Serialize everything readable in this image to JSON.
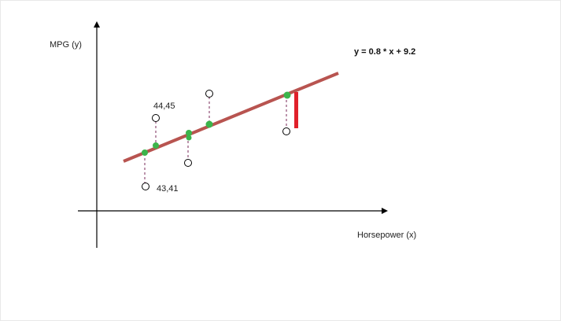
{
  "axes": {
    "y_label": "MPG (y)",
    "x_label": "Horsepower (x)"
  },
  "equation": "y = 0.8 * x + 9.2",
  "annotations": {
    "upper_point": "44,45",
    "lower_point": "43,41"
  },
  "colors": {
    "regression_line": "#b85450",
    "predicted_point": "#3cb44b",
    "residual_line": "#7a2a5a",
    "residual_highlight": "#e0202a",
    "axis": "#000000"
  }
}
